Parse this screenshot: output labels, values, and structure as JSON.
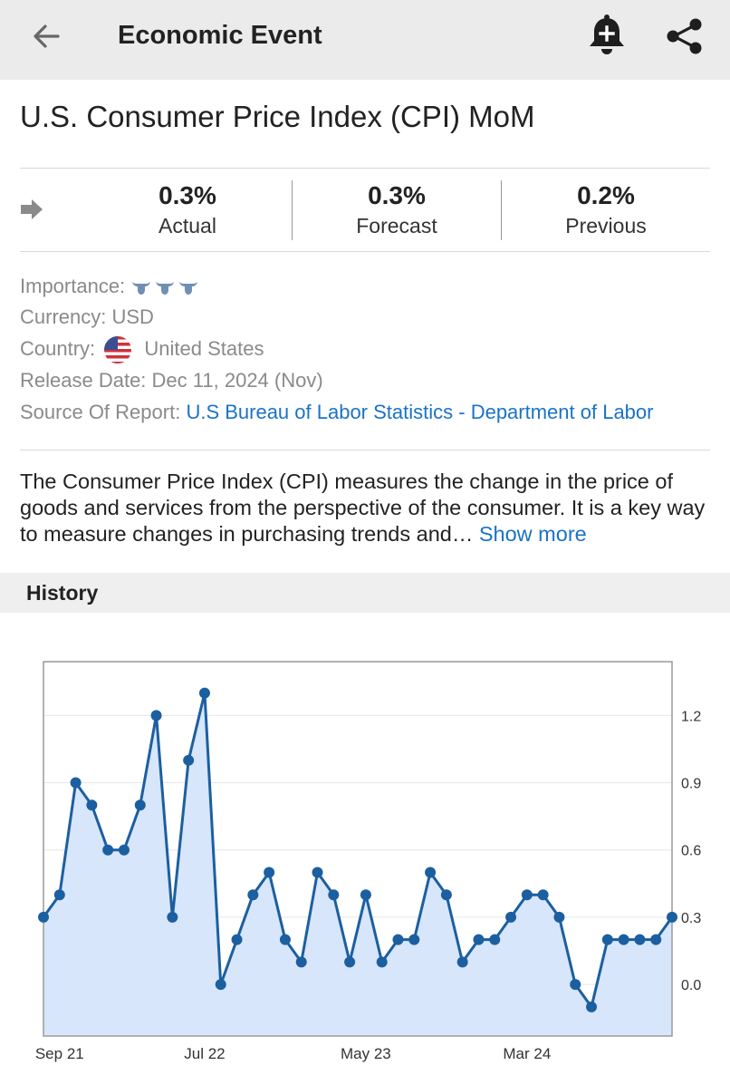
{
  "app_bar": {
    "title": "Economic Event",
    "icons": {
      "back": "back-arrow-icon",
      "alert": "add-alert-bell-icon",
      "share": "share-icon"
    }
  },
  "event": {
    "title": "U.S. Consumer Price Index (CPI) MoM"
  },
  "stats": {
    "actual": {
      "value": "0.3%",
      "label": "Actual"
    },
    "forecast": {
      "value": "0.3%",
      "label": "Forecast"
    },
    "previous": {
      "value": "0.2%",
      "label": "Previous"
    }
  },
  "details": {
    "importance_label": "Importance:",
    "importance_level": 3,
    "currency_label": "Currency:",
    "currency_value": "USD",
    "country_label": "Country:",
    "country_value": "United States",
    "release_label": "Release Date:",
    "release_value": "Dec 11, 2024 (Nov)",
    "source_label": "Source Of Report:",
    "source_value": "U.S Bureau of Labor Statistics - Department of Labor"
  },
  "description": {
    "text": "The Consumer Price Index (CPI) measures the change in the price of goods and services from the perspective of the consumer. It is a key way to measure changes in purchasing trends and…",
    "show_more": "Show more"
  },
  "history": {
    "label": "History"
  },
  "colors": {
    "accent_link": "#1a73c8",
    "line": "#1c5fa0",
    "area_fill": "#d7e6fb",
    "bull_icon": "#6f8fb5"
  },
  "chart_data": {
    "type": "area",
    "x_tick_labels": [
      "Sep 21",
      "Jul 22",
      "May 23",
      "Mar 24"
    ],
    "x_tick_indices": [
      1,
      10,
      20,
      30
    ],
    "y_ticks": [
      "1.2",
      "0.9",
      "0.6",
      "0.3",
      "0.0"
    ],
    "y_tick_values": [
      1.2,
      0.9,
      0.6,
      0.3,
      0.0
    ],
    "ylim": [
      -0.23,
      1.44
    ],
    "grid": true,
    "y_axis_side": "right",
    "values": [
      0.3,
      0.4,
      0.9,
      0.8,
      0.6,
      0.6,
      0.8,
      1.2,
      0.3,
      1.0,
      1.3,
      0.0,
      0.2,
      0.4,
      0.5,
      0.2,
      0.1,
      0.5,
      0.4,
      0.1,
      0.4,
      0.1,
      0.2,
      0.2,
      0.5,
      0.4,
      0.1,
      0.2,
      0.2,
      0.3,
      0.4,
      0.4,
      0.3,
      0.0,
      -0.1,
      0.2,
      0.2,
      0.2,
      0.2,
      0.3
    ]
  }
}
